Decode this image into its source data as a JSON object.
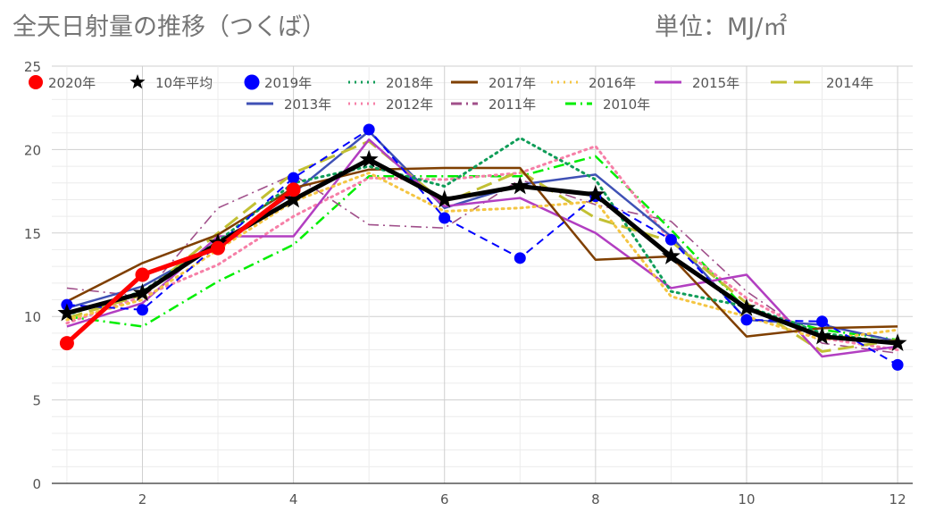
{
  "title": "全天日射量の推移（つくば）",
  "unit": "単位：MJ/㎡",
  "chart_data": {
    "type": "line",
    "x": [
      1,
      2,
      3,
      4,
      5,
      6,
      7,
      8,
      9,
      10,
      11,
      12
    ],
    "xticks": [
      2,
      4,
      6,
      8,
      10,
      12
    ],
    "ylim": [
      0,
      25
    ],
    "yticks": [
      0,
      5,
      10,
      15,
      20,
      25
    ],
    "grid": true,
    "legend_position": "top",
    "series": [
      {
        "name": "2020年",
        "color": "#ff0000",
        "style": "solid-thick-circle",
        "values": [
          8.4,
          12.5,
          14.1,
          17.6,
          null,
          null,
          null,
          null,
          null,
          null,
          null,
          null
        ]
      },
      {
        "name": "10年平均",
        "color": "#000000",
        "style": "solid-thick-star",
        "values": [
          10.2,
          11.4,
          14.4,
          17.0,
          19.4,
          17.0,
          17.8,
          17.3,
          13.6,
          10.5,
          8.8,
          8.4
        ]
      },
      {
        "name": "2019年",
        "color": "#0000ff",
        "style": "dashed-circle",
        "values": [
          10.7,
          10.4,
          14.3,
          18.3,
          21.2,
          15.9,
          13.5,
          17.2,
          14.6,
          9.8,
          9.7,
          7.1
        ]
      },
      {
        "name": "2018年",
        "color": "#0f9d58",
        "style": "dotted",
        "values": [
          10.1,
          11.5,
          14.5,
          18.0,
          19.0,
          17.8,
          20.7,
          18.2,
          11.5,
          10.6,
          9.0,
          8.4
        ]
      },
      {
        "name": "2017年",
        "color": "#7f3f00",
        "style": "solid",
        "values": [
          10.9,
          13.2,
          14.9,
          17.7,
          18.8,
          18.9,
          18.9,
          13.4,
          13.6,
          8.8,
          9.3,
          9.4
        ]
      },
      {
        "name": "2016年",
        "color": "#f4c542",
        "style": "dotted",
        "values": [
          9.8,
          11.0,
          14.0,
          16.9,
          18.6,
          16.3,
          16.5,
          16.9,
          11.2,
          10.0,
          8.6,
          9.2
        ]
      },
      {
        "name": "2015年",
        "color": "#b23ec1",
        "style": "solid",
        "values": [
          9.4,
          10.8,
          14.8,
          14.8,
          20.6,
          16.6,
          17.1,
          15.0,
          11.7,
          12.5,
          7.6,
          8.2
        ]
      },
      {
        "name": "2014年",
        "color": "#c2c033",
        "style": "long-dash",
        "values": [
          9.9,
          11.3,
          15.0,
          18.6,
          20.5,
          16.8,
          18.7,
          15.9,
          14.5,
          10.8,
          7.9,
          8.6
        ]
      },
      {
        "name": "2013年",
        "color": "#3f51b5",
        "style": "solid",
        "values": [
          10.5,
          11.8,
          14.3,
          17.4,
          21.1,
          16.5,
          17.9,
          18.5,
          14.8,
          9.8,
          9.5,
          8.5
        ]
      },
      {
        "name": "2012年",
        "color": "#f67fa7",
        "style": "dotted",
        "values": [
          9.6,
          11.2,
          13.1,
          16.0,
          18.3,
          18.2,
          18.6,
          20.2,
          14.5,
          11.1,
          8.7,
          8.0
        ]
      },
      {
        "name": "2011年",
        "color": "#a04f8a",
        "style": "dash-dot",
        "values": [
          11.7,
          11.2,
          16.5,
          18.5,
          15.5,
          15.3,
          18.2,
          16.7,
          15.7,
          11.5,
          8.4,
          7.8
        ]
      },
      {
        "name": "2010年",
        "color": "#00ee00",
        "style": "dash-dot-thick",
        "values": [
          10.0,
          9.4,
          12.1,
          14.3,
          18.4,
          18.4,
          18.4,
          19.6,
          15.2,
          10.4,
          9.2,
          8.6
        ]
      }
    ]
  }
}
